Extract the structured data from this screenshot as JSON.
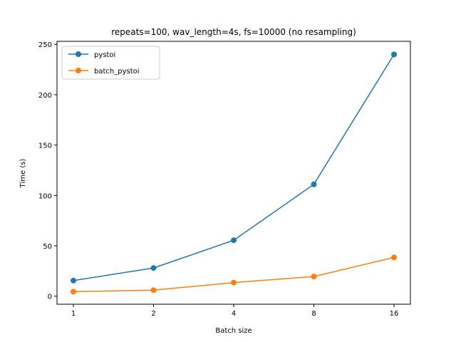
{
  "chart_data": {
    "type": "line",
    "title": "repeats=100, wav_length=4s, fs=10000 (no resampling)",
    "xlabel": "Batch size",
    "ylabel": "Time (s)",
    "x": [
      1,
      2,
      4,
      8,
      16
    ],
    "x_tick_labels": [
      "1",
      "2",
      "4",
      "8",
      "16"
    ],
    "x_scale": "log2",
    "ylim": [
      -8,
      253
    ],
    "y_ticks": [
      0,
      50,
      100,
      150,
      200,
      250
    ],
    "y_tick_labels": [
      "0",
      "50",
      "100",
      "150",
      "200",
      "250"
    ],
    "grid": false,
    "legend_position": "top-left",
    "series": [
      {
        "name": "pystoi",
        "color": "#1f77b4",
        "values": [
          15.5,
          28,
          55.5,
          111,
          240
        ]
      },
      {
        "name": "batch_pystoi",
        "color": "#ff7f0e",
        "values": [
          4.5,
          6,
          13.5,
          19.5,
          38.5
        ]
      }
    ]
  }
}
